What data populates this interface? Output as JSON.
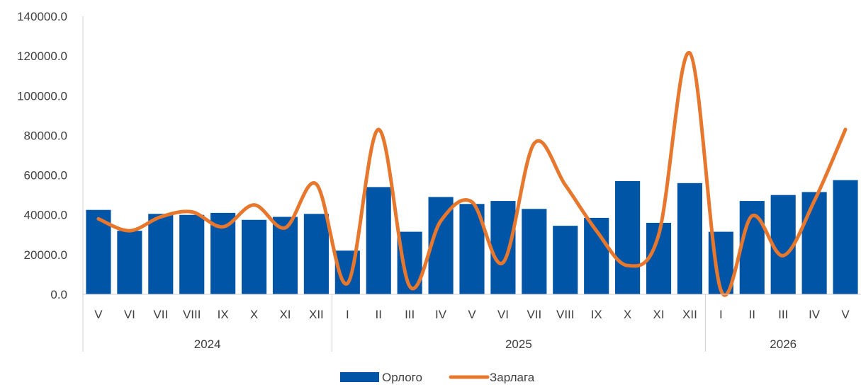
{
  "chart_data": {
    "type": "bar",
    "categories": [
      "V",
      "VI",
      "VII",
      "VIII",
      "IX",
      "X",
      "XI",
      "XII",
      "I",
      "II",
      "III",
      "IV",
      "V",
      "VI",
      "VII",
      "VIII",
      "IX",
      "X",
      "XI",
      "XII",
      "I",
      "II",
      "III",
      "IV",
      "V"
    ],
    "groups": [
      {
        "label": "2024",
        "count": 8
      },
      {
        "label": "2025",
        "count": 12
      },
      {
        "label": "2026",
        "count": 5
      }
    ],
    "ylim": [
      0,
      140000
    ],
    "yticks": [
      "0.0",
      "20000.0",
      "40000.0",
      "60000.0",
      "80000.0",
      "100000.0",
      "120000.0",
      "140000.0"
    ],
    "series": [
      {
        "name": "Орлого",
        "kind": "bar",
        "color": "#0055A6",
        "values": [
          42500,
          32000,
          40500,
          40000,
          41000,
          37500,
          39000,
          40500,
          22000,
          54000,
          31500,
          49000,
          45500,
          47000,
          43000,
          34500,
          38500,
          57000,
          36000,
          56000,
          31500,
          47000,
          50000,
          51500,
          57500
        ]
      },
      {
        "name": "Зарлага",
        "kind": "line",
        "color": "#E8772E",
        "values": [
          38000,
          32000,
          39000,
          41500,
          34000,
          45000,
          33500,
          55500,
          5500,
          83000,
          4000,
          37000,
          46500,
          16000,
          76000,
          55000,
          32000,
          14500,
          30000,
          121500,
          2000,
          39500,
          19500,
          47000,
          83000
        ]
      }
    ],
    "legend_position": "bottom",
    "grid": false
  }
}
